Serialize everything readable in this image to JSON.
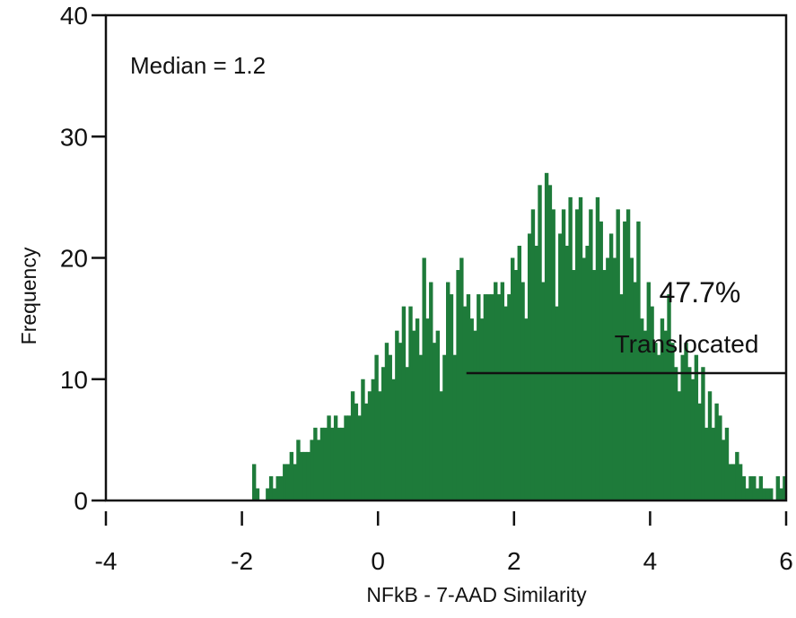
{
  "chart_data": {
    "type": "bar",
    "subtype": "histogram",
    "xlabel": "NFkB - 7-AAD Similarity",
    "ylabel": "Frequency",
    "xlim": [
      -4,
      6
    ],
    "ylim": [
      0,
      40
    ],
    "x_ticks": [
      -4,
      -2,
      0,
      2,
      4,
      6
    ],
    "y_ticks": [
      0,
      10,
      20,
      30,
      40
    ],
    "bar_color": "#1e7b3a",
    "bin_width": 0.05,
    "bins_start": -2.0,
    "values": [
      0,
      0,
      0,
      3,
      1,
      0,
      0,
      1,
      2,
      1,
      2,
      2,
      3,
      3,
      4,
      3,
      5,
      4,
      4,
      4,
      5,
      6,
      5,
      6,
      6,
      7,
      6,
      7,
      6,
      6,
      7,
      7,
      9,
      8,
      7,
      10,
      8,
      9,
      10,
      12,
      9,
      11,
      13,
      12,
      10,
      14,
      13,
      16,
      11,
      16,
      14,
      15,
      12,
      20,
      15,
      18,
      13,
      14,
      9,
      12,
      18,
      17,
      12,
      19,
      20,
      16,
      17,
      15,
      14,
      17,
      15,
      17,
      17,
      17,
      18,
      17,
      18,
      16,
      17,
      20,
      19,
      21,
      18,
      15,
      22,
      24,
      21,
      26,
      18,
      27,
      26,
      24,
      16,
      22,
      24,
      21,
      25,
      19,
      24,
      25,
      20,
      21,
      24,
      19,
      25,
      23,
      19,
      20,
      22,
      20,
      24,
      17,
      23,
      24,
      20,
      18,
      23,
      15,
      14,
      18,
      16,
      13,
      12,
      15,
      14,
      17,
      13,
      11,
      9,
      12,
      13,
      11,
      10,
      12,
      8,
      11,
      6,
      9,
      6,
      8,
      7,
      5,
      6,
      3,
      3,
      4,
      3,
      2,
      1,
      2,
      2,
      1,
      2,
      1,
      1,
      1,
      0,
      2,
      1,
      2,
      0,
      0,
      0,
      0,
      0,
      0,
      0,
      0,
      0,
      0,
      0,
      0,
      1,
      0,
      0,
      0
    ],
    "annotations": [
      {
        "text": "Median = 1.2"
      },
      {
        "text": "47.7%"
      },
      {
        "text": "Translocated"
      }
    ],
    "gate": {
      "x_start": 1.3,
      "x_end": 6,
      "y": 10.5
    }
  }
}
